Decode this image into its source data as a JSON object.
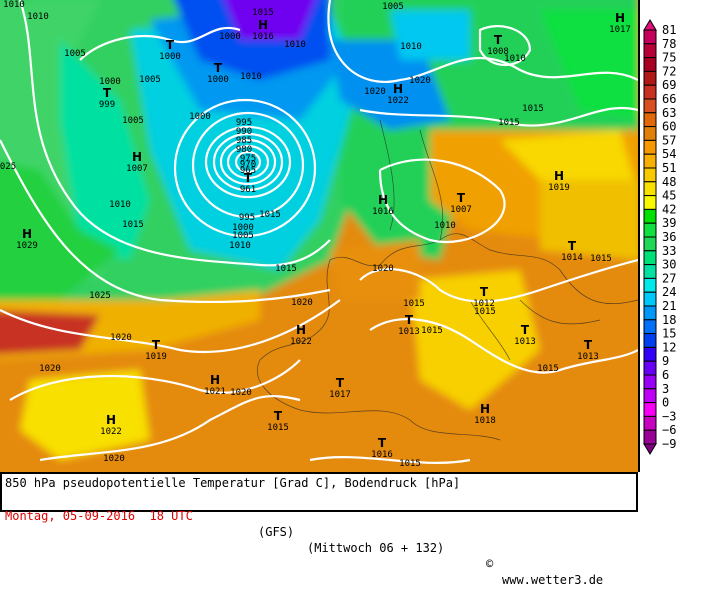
{
  "caption": {
    "title": "850 hPa pseudopotentielle Temperatur [Grad C], Bodendruck [hPa]",
    "date": "Montag, 05-09-2016  18 UTC",
    "model": "(GFS)",
    "run": "(Mittwoch 06 + 132)",
    "copyright_symbol": "©",
    "site": "www.wetter3.de"
  },
  "legend": {
    "labels": [
      "81",
      "78",
      "75",
      "72",
      "69",
      "66",
      "63",
      "60",
      "57",
      "54",
      "51",
      "48",
      "45",
      "42",
      "39",
      "36",
      "33",
      "30",
      "27",
      "24",
      "21",
      "18",
      "15",
      "12",
      "9",
      "6",
      "3",
      "0",
      "−3",
      "−6",
      "−9"
    ],
    "colors": [
      "#e0107a",
      "#c4005c",
      "#b80038",
      "#a80020",
      "#b01818",
      "#c83020",
      "#d85020",
      "#e06808",
      "#e08008",
      "#f89800",
      "#f8b000",
      "#f8c800",
      "#f8e000",
      "#f8f800",
      "#00e000",
      "#10e040",
      "#20d858",
      "#00e078",
      "#00e0a0",
      "#00e8e8",
      "#00c8f8",
      "#0098f8",
      "#0070f8",
      "#0040f0",
      "#3000f8",
      "#6800f8",
      "#9800f8",
      "#c000f8",
      "#f800f8",
      "#c800c0",
      "#980098",
      "#800080"
    ]
  },
  "pressure_centers": [
    {
      "type": "H",
      "value": "1016"
    },
    {
      "type": "T",
      "value": "1000"
    },
    {
      "type": "T",
      "value": "1000"
    },
    {
      "type": "T",
      "value": "999"
    },
    {
      "type": "H",
      "value": "1007"
    },
    {
      "type": "T",
      "value": "961"
    },
    {
      "type": "H",
      "value": "1029"
    },
    {
      "type": "H",
      "value": "1022"
    },
    {
      "type": "T",
      "value": "1008"
    },
    {
      "type": "H",
      "value": "1017"
    },
    {
      "type": "H",
      "value": "1019"
    },
    {
      "type": "H",
      "value": "1016"
    },
    {
      "type": "T",
      "value": "1007"
    },
    {
      "type": "T",
      "value": "1014"
    },
    {
      "type": "T",
      "value": "1012"
    },
    {
      "type": "T",
      "value": "1013"
    },
    {
      "type": "T",
      "value": "1013"
    },
    {
      "type": "T",
      "value": "1013"
    },
    {
      "type": "H",
      "value": "1022"
    },
    {
      "type": "T",
      "value": "1019"
    },
    {
      "type": "H",
      "value": "1021"
    },
    {
      "type": "T",
      "value": "1017"
    },
    {
      "type": "T",
      "value": "1015"
    },
    {
      "type": "H",
      "value": "1018"
    },
    {
      "type": "H",
      "value": "1022"
    },
    {
      "type": "T",
      "value": "1016"
    }
  ],
  "isobar_labels": [
    "1010",
    "1010",
    "1005",
    "1005",
    "1005",
    "1000",
    "1010",
    "1015",
    "995",
    "1000",
    "1005",
    "1010",
    "1015",
    "1025",
    "1020",
    "1020",
    "1020",
    "1020",
    "1015",
    "1020",
    "1020",
    "1015",
    "1015",
    "1015",
    "1010",
    "1015",
    "1015",
    "1010",
    "1010",
    "1005",
    "1010",
    "1010",
    "1020",
    "1015",
    "025",
    "995",
    "990",
    "985",
    "980",
    "975",
    "970",
    "965",
    "1015",
    "1015",
    "1020",
    "1000",
    "1000",
    "1015"
  ]
}
